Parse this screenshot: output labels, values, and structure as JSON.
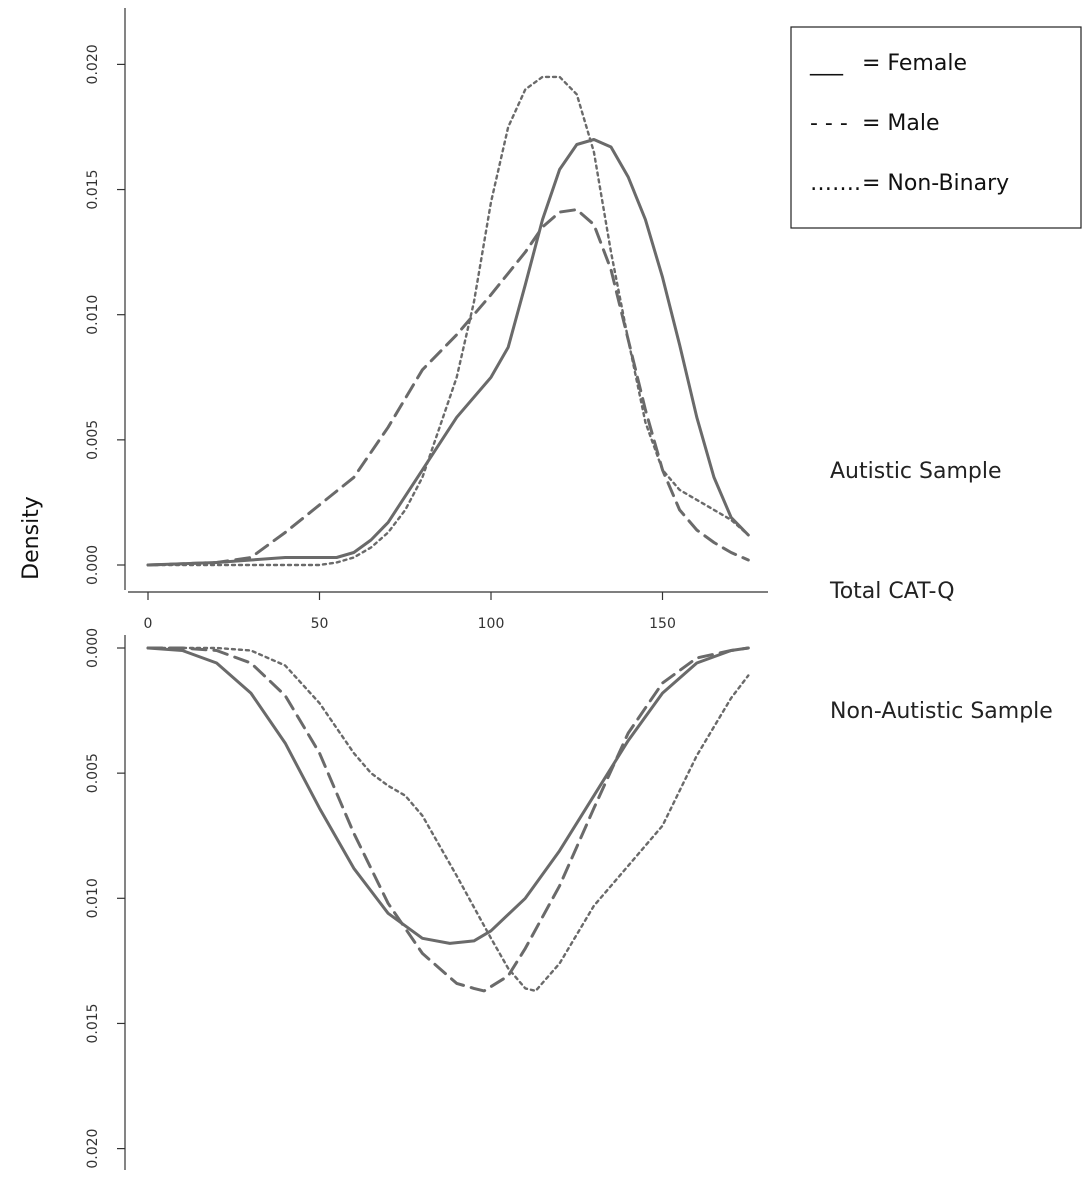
{
  "chart_data": {
    "type": "line",
    "ylabel": "Density",
    "xlabel": "Total CAT-Q",
    "x_ticks": [
      "0",
      "50",
      "100",
      "150"
    ],
    "x_tick_values": [
      0,
      50,
      100,
      150
    ],
    "xlim": [
      0,
      175
    ],
    "legend": {
      "placement": "top-right",
      "entries": [
        {
          "symbol": "___",
          "text": "= Female",
          "series": "female"
        },
        {
          "symbol": "- - -",
          "text": "= Male",
          "series": "male"
        },
        {
          "symbol": "…….",
          "text": "= Non-Binary",
          "series": "nonbinary"
        }
      ]
    },
    "panels": [
      {
        "id": "autistic",
        "label": "Autistic Sample",
        "ylim": [
          0,
          0.022
        ],
        "y_ticks": [
          "0.000",
          "0.005",
          "0.010",
          "0.015",
          "0.020"
        ],
        "y_tick_values": [
          0,
          0.005,
          0.01,
          0.015,
          0.02
        ],
        "inverted": false,
        "series": [
          {
            "key": "female",
            "style": "solid",
            "x": [
              0,
              20,
              30,
              40,
              50,
              55,
              60,
              65,
              70,
              80,
              90,
              100,
              105,
              110,
              115,
              120,
              125,
              130,
              135,
              140,
              145,
              150,
              155,
              160,
              165,
              170,
              175
            ],
            "y": [
              0,
              0.0001,
              0.0002,
              0.0003,
              0.0003,
              0.0003,
              0.0005,
              0.001,
              0.0017,
              0.0038,
              0.0059,
              0.0075,
              0.0087,
              0.0112,
              0.0138,
              0.0158,
              0.0168,
              0.017,
              0.0167,
              0.0155,
              0.0138,
              0.0115,
              0.0088,
              0.0059,
              0.0035,
              0.0019,
              0.0012
            ]
          },
          {
            "key": "male",
            "style": "dashed",
            "x": [
              0,
              20,
              30,
              40,
              50,
              60,
              70,
              80,
              90,
              100,
              110,
              115,
              120,
              125,
              130,
              135,
              140,
              145,
              150,
              155,
              160,
              165,
              170,
              175
            ],
            "y": [
              0,
              0.0001,
              0.0003,
              0.0013,
              0.0024,
              0.0035,
              0.0055,
              0.0078,
              0.0092,
              0.0108,
              0.0125,
              0.0135,
              0.0141,
              0.0142,
              0.0136,
              0.0118,
              0.009,
              0.0062,
              0.0038,
              0.0022,
              0.0014,
              0.0009,
              0.0005,
              0.0002
            ]
          },
          {
            "key": "nonbinary",
            "style": "dotted",
            "x": [
              0,
              50,
              55,
              60,
              65,
              70,
              75,
              80,
              85,
              90,
              95,
              100,
              105,
              110,
              115,
              120,
              125,
              130,
              135,
              140,
              145,
              150,
              155,
              160,
              165,
              170,
              175
            ],
            "y": [
              0,
              0,
              0.0001,
              0.0003,
              0.0007,
              0.0013,
              0.0022,
              0.0035,
              0.0055,
              0.0075,
              0.0105,
              0.0145,
              0.0175,
              0.019,
              0.0195,
              0.0195,
              0.0188,
              0.0165,
              0.0125,
              0.009,
              0.0057,
              0.0038,
              0.003,
              0.0026,
              0.0022,
              0.0018,
              0.0012
            ]
          }
        ]
      },
      {
        "id": "non_autistic",
        "label": "Non-Autistic Sample",
        "ylim": [
          0,
          0.022
        ],
        "y_ticks": [
          "0.000",
          "0.005",
          "0.010",
          "0.015",
          "0.020"
        ],
        "y_tick_values": [
          0,
          0.005,
          0.01,
          0.015,
          0.02
        ],
        "inverted": true,
        "series": [
          {
            "key": "female",
            "style": "solid",
            "x": [
              0,
              10,
              20,
              30,
              40,
              50,
              60,
              70,
              80,
              88,
              95,
              100,
              110,
              120,
              130,
              140,
              150,
              160,
              170,
              175
            ],
            "y": [
              0,
              0.0001,
              0.0006,
              0.0018,
              0.0038,
              0.0064,
              0.0088,
              0.0106,
              0.0116,
              0.0118,
              0.0117,
              0.0113,
              0.01,
              0.0081,
              0.0059,
              0.0037,
              0.0018,
              0.0006,
              0.0001,
              0
            ]
          },
          {
            "key": "male",
            "style": "dashed",
            "x": [
              0,
              10,
              20,
              30,
              40,
              50,
              60,
              70,
              80,
              90,
              95,
              98,
              105,
              110,
              120,
              130,
              140,
              150,
              160,
              170,
              175
            ],
            "y": [
              0,
              0,
              0.0001,
              0.0006,
              0.0019,
              0.0042,
              0.0074,
              0.0102,
              0.0122,
              0.0134,
              0.0136,
              0.0137,
              0.0131,
              0.012,
              0.0095,
              0.0064,
              0.0034,
              0.0014,
              0.0004,
              0.0001,
              0
            ]
          },
          {
            "key": "nonbinary",
            "style": "dotted",
            "x": [
              0,
              20,
              30,
              40,
              50,
              60,
              65,
              70,
              75,
              80,
              90,
              100,
              105,
              110,
              113,
              120,
              130,
              140,
              150,
              160,
              170,
              175
            ],
            "y": [
              0,
              0,
              0.0001,
              0.0007,
              0.0022,
              0.0042,
              0.005,
              0.0055,
              0.0059,
              0.0067,
              0.0091,
              0.0116,
              0.0128,
              0.0136,
              0.0137,
              0.0126,
              0.0103,
              0.0087,
              0.0071,
              0.0043,
              0.002,
              0.0011
            ]
          }
        ]
      }
    ],
    "annotations": [
      "Total CAT-Q"
    ]
  }
}
